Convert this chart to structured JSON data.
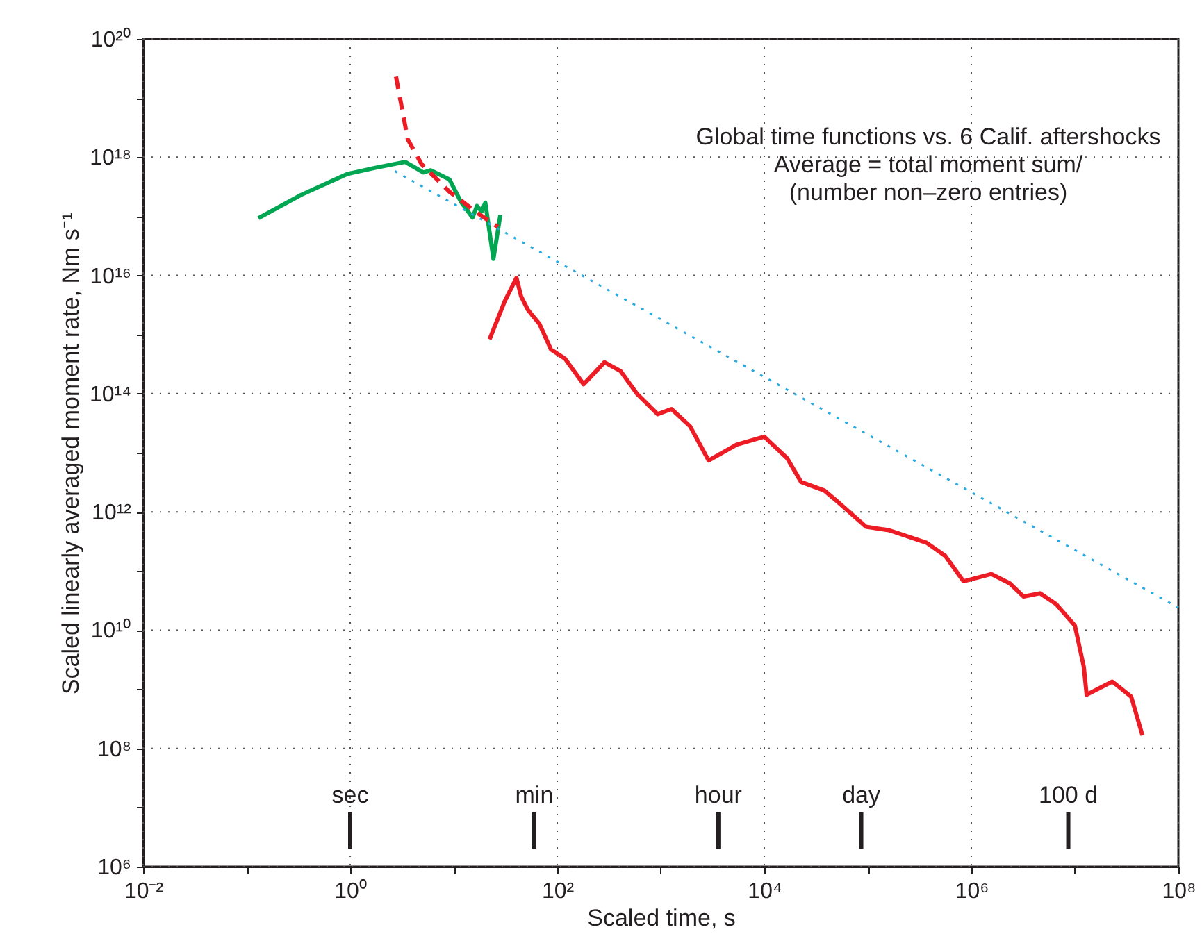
{
  "chart_data": {
    "type": "line",
    "xlabel": "Scaled time, s",
    "ylabel": "Scaled linearly averaged moment rate, Nm s⁻¹",
    "log": "xy",
    "grid": true,
    "marker": "none",
    "xlim": [
      0.01,
      100000000
    ],
    "ylim": [
      1000000,
      100000000000000000000
    ],
    "xticks": [
      {
        "value": 0.01,
        "label": "10⁻²"
      },
      {
        "value": 0.1,
        "label": null
      },
      {
        "value": 1,
        "label": "10⁰"
      },
      {
        "value": 10,
        "label": null
      },
      {
        "value": 100,
        "label": "10²"
      },
      {
        "value": 1000,
        "label": null
      },
      {
        "value": 10000,
        "label": "10⁴"
      },
      {
        "value": 100000,
        "label": null
      },
      {
        "value": 1000000,
        "label": "10⁶"
      },
      {
        "value": 10000000,
        "label": null
      },
      {
        "value": 100000000,
        "label": "10⁸"
      }
    ],
    "yticks": [
      {
        "value": 1000000,
        "label": "10⁶"
      },
      {
        "value": 10000000,
        "label": null
      },
      {
        "value": 100000000,
        "label": "10⁸"
      },
      {
        "value": 1000000000,
        "label": null
      },
      {
        "value": 10000000000,
        "label": "10¹⁰"
      },
      {
        "value": 100000000000,
        "label": null
      },
      {
        "value": 1000000000000,
        "label": "10¹²"
      },
      {
        "value": 10000000000000,
        "label": null
      },
      {
        "value": 100000000000000,
        "label": "10¹⁴"
      },
      {
        "value": 1000000000000000,
        "label": null
      },
      {
        "value": 10000000000000000,
        "label": "10¹⁶"
      },
      {
        "value": 100000000000000000,
        "label": null
      },
      {
        "value": 1000000000000000000,
        "label": "10¹⁸"
      },
      {
        "value": 10000000000000000000,
        "label": null
      },
      {
        "value": 100000000000000000000,
        "label": "10²⁰"
      }
    ],
    "series": [
      {
        "color": "#00a651",
        "line_style": "solid",
        "x": [
          0.13,
          0.336,
          0.94,
          1.75,
          3.4,
          5.1,
          6.0,
          9.1,
          11.7,
          15.2,
          16.8,
          18.6,
          20.2,
          24.2,
          28.2
        ],
        "values": [
          9.3e+16,
          2.3e+17,
          5.2e+17,
          6.6e+17,
          8.3e+17,
          5.5e+17,
          6e+17,
          4.2e+17,
          1.78e+17,
          9.5e+16,
          1.5e+17,
          1.2e+17,
          1.7e+17,
          1.9e+16,
          1.05e+17
        ]
      },
      {
        "color": "#ed1c24",
        "line_style": "dashed",
        "x": [
          2.77,
          3.6,
          4.9,
          9.1,
          16.8,
          26.7
        ],
        "values": [
          2.3e+19,
          2e+18,
          7.6e+17,
          2.6e+17,
          1.15e+17,
          6.6e+16
        ]
      },
      {
        "color": "#ed1c24",
        "line_style": "solid",
        "x": [
          22.2,
          31.2,
          40.4,
          44.8,
          52.2,
          67.5,
          87,
          119,
          180,
          286,
          410,
          588,
          933,
          1270,
          1920,
          2900,
          5400,
          10000,
          16600,
          22700,
          38000,
          52000,
          96000,
          160000,
          370000,
          560000,
          840000,
          1560000,
          2350000,
          3200000,
          4600000,
          6600000,
          10000000,
          12200000,
          13000000,
          23000000,
          35000000,
          45000000
        ],
        "values": [
          830000000000000.0,
          3700000000000000.0,
          9100000000000000.0,
          4400000000000000.0,
          2600000000000000.0,
          1500000000000000.0,
          560000000000000.0,
          390000000000000.0,
          144000000000000.0,
          340000000000000.0,
          240000000000000.0,
          100000000000000.0,
          45000000000000.0,
          55000000000000.0,
          28000000000000.0,
          7400000000000.0,
          13700000000000.0,
          18700000000000.0,
          8100000000000.0,
          3200000000000.0,
          2300000000000.0,
          1450000000000.0,
          560000000000.0,
          490000000000.0,
          300000000000.0,
          180000000000.0,
          67000000000.0,
          89000000000.0,
          62000000000.0,
          37000000000.0,
          42000000000.0,
          27500000000.0,
          12000000000.0,
          2400000000.0,
          810000000.0,
          1350000000.0,
          750000000.0,
          166000000.0
        ]
      },
      {
        "color": "#29abe2",
        "line_style": "dotted",
        "x": [
          2.7,
          100000000
        ],
        "values": [
          5.8e+17,
          24000000000.0
        ]
      }
    ],
    "annotations": [
      "Global time functions vs. 6 Calif. aftershocks",
      "Average = total moment sum/",
      "(number non–zero entries)"
    ],
    "ref_lines": [
      {
        "axis": "x",
        "value": 1,
        "label": "sec"
      },
      {
        "axis": "x",
        "value": 60,
        "label": "min"
      },
      {
        "axis": "x",
        "value": 3600,
        "label": "hour"
      },
      {
        "axis": "x",
        "value": 86400,
        "label": "day"
      },
      {
        "axis": "x",
        "value": 8640000,
        "label": "100 d"
      }
    ]
  }
}
